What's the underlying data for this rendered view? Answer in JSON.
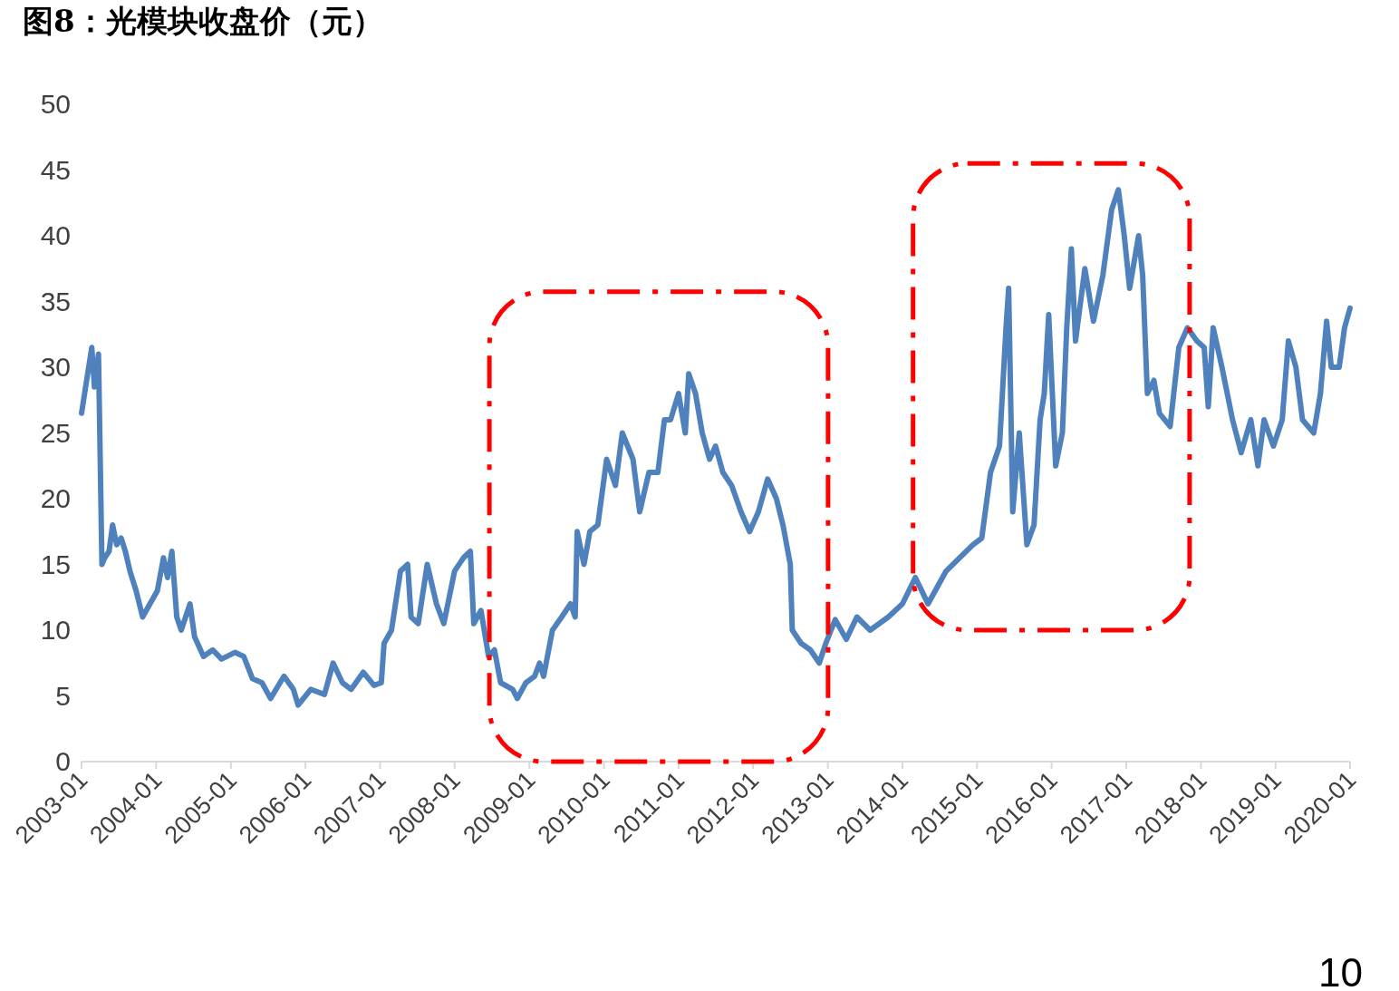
{
  "chart_data": {
    "type": "line",
    "title": "图8：光模块收盘价（元）",
    "annotations": [
      "10"
    ],
    "xlim": [
      "2003-01",
      "2020-01"
    ],
    "xticks": [
      "2003-01",
      "2004-01",
      "2005-01",
      "2006-01",
      "2007-01",
      "2008-01",
      "2009-01",
      "2010-01",
      "2011-01",
      "2012-01",
      "2013-01",
      "2014-01",
      "2015-01",
      "2016-01",
      "2017-01",
      "2018-01",
      "2019-01",
      "2020-01"
    ],
    "ylim": [
      0,
      50
    ],
    "yticks": [
      0,
      5,
      10,
      15,
      20,
      25,
      30,
      35,
      40,
      45,
      50
    ],
    "series": [
      {
        "color": "#4f81bd",
        "x": [
          "2003-01-01",
          "2003-01-21",
          "2003-02-20",
          "2003-03-05",
          "2003-03-25",
          "2003-04-11",
          "2003-04-24",
          "2003-05-16",
          "2003-06-02",
          "2003-06-22",
          "2003-07-14",
          "2003-08-03",
          "2003-08-26",
          "2003-09-25",
          "2003-10-27",
          "2003-12-02",
          "2004-01-07",
          "2004-02-06",
          "2004-02-26",
          "2004-03-18",
          "2004-04-11",
          "2004-05-03",
          "2004-06-15",
          "2004-07-07",
          "2004-08-20",
          "2004-10-04",
          "2004-11-16",
          "2005-01-21",
          "2005-03-05",
          "2005-04-17",
          "2005-06-02",
          "2005-07-14",
          "2005-09-18",
          "2005-11-03",
          "2005-11-26",
          "2006-01-27",
          "2006-04-04",
          "2006-05-16",
          "2006-07-01",
          "2006-08-13",
          "2006-10-11",
          "2006-12-02",
          "2007-01-07",
          "2007-01-21",
          "2007-02-26",
          "2007-04-11",
          "2007-05-16",
          "2007-06-02",
          "2007-07-07",
          "2007-08-20",
          "2007-10-04",
          "2007-11-09",
          "2008-01-01",
          "2008-02-13",
          "2008-03-18",
          "2008-04-04",
          "2008-05-09",
          "2008-06-15",
          "2008-07-14",
          "2008-08-13",
          "2008-10-11",
          "2008-11-03",
          "2008-12-15",
          "2009-01-27",
          "2009-02-20",
          "2009-03-12",
          "2009-04-24",
          "2009-06-08",
          "2009-07-21",
          "2009-08-13",
          "2009-08-23",
          "2009-09-25",
          "2009-10-24",
          "2009-12-02",
          "2010-01-14",
          "2010-02-26",
          "2010-04-01",
          "2010-05-23",
          "2010-06-25",
          "2010-08-09",
          "2010-09-22",
          "2010-10-24",
          "2010-11-23",
          "2011-01-01",
          "2011-02-03",
          "2011-02-20",
          "2011-03-25",
          "2011-04-27",
          "2011-06-02",
          "2011-07-01",
          "2011-08-06",
          "2011-09-18",
          "2011-11-03",
          "2011-12-15",
          "2012-01-27",
          "2012-03-12",
          "2012-04-24",
          "2012-05-26",
          "2012-07-01",
          "2012-07-11",
          "2012-08-23",
          "2012-10-07",
          "2012-11-20",
          "2012-12-22",
          "2013-02-06",
          "2013-04-01",
          "2013-05-23",
          "2013-07-27",
          "2013-10-24",
          "2014-01-01",
          "2014-03-05",
          "2014-05-06",
          "2014-08-03",
          "2014-10-07",
          "2014-12-12",
          "2015-01-24",
          "2015-03-08",
          "2015-04-21",
          "2015-05-23",
          "2015-06-05",
          "2015-06-25",
          "2015-07-27",
          "2015-09-02",
          "2015-10-07",
          "2015-11-06",
          "2015-11-26",
          "2015-12-18",
          "2016-01-21",
          "2016-02-23",
          "2016-03-15",
          "2016-04-07",
          "2016-04-27",
          "2016-06-12",
          "2016-07-24",
          "2016-09-08",
          "2016-10-21",
          "2016-11-23",
          "2016-12-22",
          "2017-01-17",
          "2017-03-02",
          "2017-03-22",
          "2017-04-14",
          "2017-05-16",
          "2017-06-12",
          "2017-08-03",
          "2017-09-15",
          "2017-10-27",
          "2017-12-12",
          "2018-01-17",
          "2018-02-06",
          "2018-03-02",
          "2018-04-14",
          "2018-06-05",
          "2018-07-17",
          "2018-09-02",
          "2018-10-07",
          "2018-11-06",
          "2018-12-22",
          "2019-02-03",
          "2019-03-05",
          "2019-04-11",
          "2019-05-13",
          "2019-07-07",
          "2019-08-09",
          "2019-09-08",
          "2019-10-01",
          "2019-11-09",
          "2019-12-05",
          "2020-01-01"
        ],
        "values": [
          26.5,
          28.5,
          31.5,
          28.5,
          31,
          15,
          15.5,
          16,
          18,
          16.5,
          17,
          16,
          14.5,
          13,
          11,
          12,
          13,
          15.5,
          14,
          16,
          11,
          10,
          12,
          9.5,
          8,
          8.5,
          7.8,
          8.3,
          8,
          6.3,
          6,
          4.8,
          6.5,
          5.5,
          4.3,
          5.5,
          5.1,
          7.5,
          6,
          5.5,
          6.8,
          5.8,
          6,
          9,
          10,
          14.5,
          15,
          11,
          10.5,
          15,
          12,
          10.5,
          14.5,
          15.5,
          16,
          10.5,
          11.5,
          8,
          8.5,
          6,
          5.5,
          4.8,
          6,
          6.5,
          7.5,
          6.5,
          10,
          11,
          12,
          11,
          17.5,
          15,
          17.5,
          18,
          23,
          21,
          25,
          23,
          19,
          22,
          22,
          26,
          26,
          28,
          25,
          29.5,
          28,
          25,
          23,
          24,
          22,
          21,
          19,
          17.5,
          19,
          21.5,
          20,
          18,
          15,
          10,
          9,
          8.5,
          7.5,
          9,
          10.8,
          9.3,
          11,
          10,
          11,
          12,
          14,
          12,
          14.5,
          15.5,
          16.5,
          17,
          22,
          24,
          33,
          36,
          19,
          25,
          16.5,
          18,
          26,
          28,
          34,
          22.5,
          25,
          33,
          39,
          32,
          37.5,
          33.5,
          37,
          42,
          43.5,
          40,
          36,
          40,
          37,
          28,
          29,
          26.5,
          25.5,
          31.5,
          33,
          32,
          31.5,
          27,
          33,
          30,
          26,
          23.5,
          26,
          22.5,
          26,
          24,
          26,
          32,
          30,
          26,
          25,
          28,
          33.5,
          30,
          30,
          33,
          34.5
        ]
      }
    ]
  }
}
